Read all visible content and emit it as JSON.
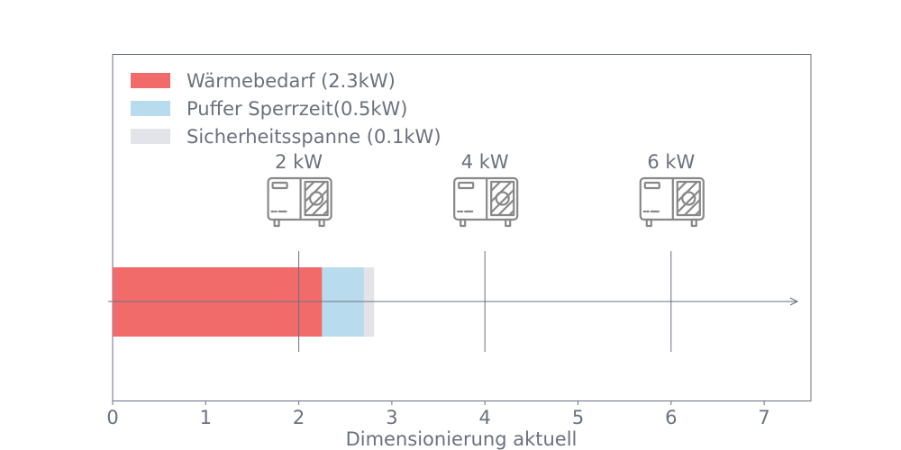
{
  "chart_data": {
    "type": "bar",
    "orientation": "horizontal",
    "stacked": true,
    "xlabel": "Dimensionierung aktuell",
    "xlim": [
      0,
      7.5
    ],
    "xticks": [
      0,
      1,
      2,
      3,
      4,
      5,
      6,
      7
    ],
    "grid": false,
    "legend_position": "top-left",
    "series": [
      {
        "name": "Wärmebedarf (2.3kW)",
        "value": 2.25,
        "color": "#f26b6b"
      },
      {
        "name": "Puffer Sperrzeit(0.5kW)",
        "value": 0.45,
        "color": "#b8dcee"
      },
      {
        "name": "Sicherheitsspanne (0.1kW)",
        "value": 0.11,
        "color": "#e3e4ea"
      }
    ],
    "markers": [
      {
        "x": 2,
        "label": "2 kW",
        "icon": "heat-pump-icon"
      },
      {
        "x": 4,
        "label": "4 kW",
        "icon": "heat-pump-icon"
      },
      {
        "x": 6,
        "label": "6 kW",
        "icon": "heat-pump-icon"
      }
    ]
  }
}
